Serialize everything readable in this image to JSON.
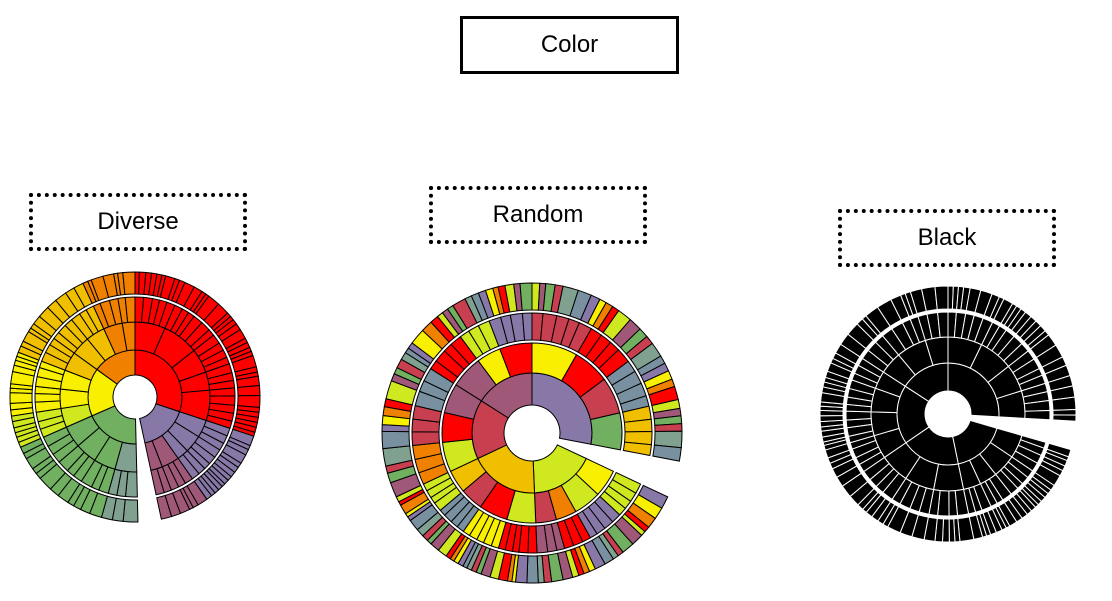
{
  "title": "Color",
  "schemes": [
    {
      "id": "diverse",
      "label": "Diverse"
    },
    {
      "id": "random",
      "label": "Random"
    },
    {
      "id": "black",
      "label": "Black"
    }
  ],
  "palettes": {
    "red": "#ff0000",
    "orange": "#f08000",
    "amber": "#f0c000",
    "yellow": "#f8f000",
    "lime": "#d0e820",
    "green": "#70b060",
    "sage": "#80a090",
    "slate": "#7890a0",
    "purple": "#8878a8",
    "mauve": "#a05878",
    "rose": "#c84050",
    "black": "#000000"
  }
}
